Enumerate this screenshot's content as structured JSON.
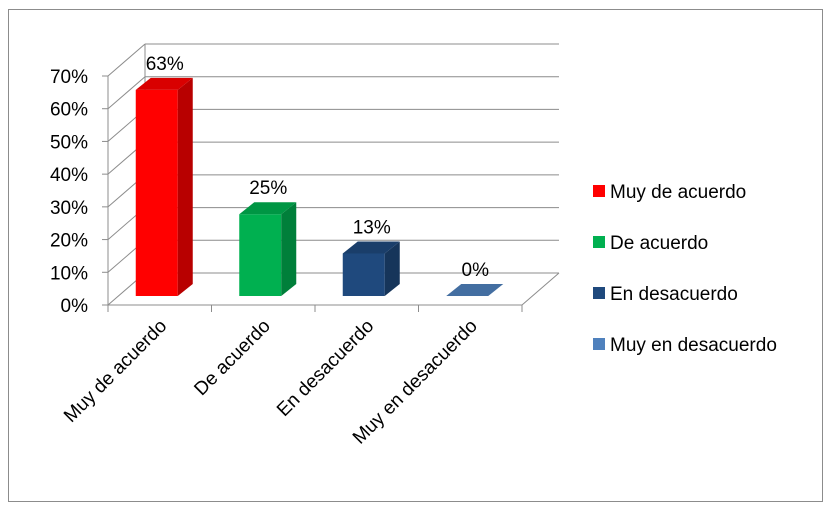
{
  "chart_data": {
    "type": "bar",
    "style": "3d-column",
    "categories": [
      "Muy de acuerdo",
      "De acuerdo",
      "En desacuerdo",
      "Muy en desacuerdo"
    ],
    "values": [
      63,
      25,
      13,
      0
    ],
    "data_labels": [
      "63%",
      "25%",
      "13%",
      "0%"
    ],
    "colors": [
      "#ff0000",
      "#00b050",
      "#1f497d",
      "#4f81bd"
    ],
    "ylim": [
      0,
      70
    ],
    "yticks": [
      0,
      10,
      20,
      30,
      40,
      50,
      60,
      70
    ],
    "ytick_labels": [
      "0%",
      "10%",
      "20%",
      "30%",
      "40%",
      "50%",
      "60%",
      "70%"
    ],
    "grid": true,
    "legend": {
      "position": "right",
      "entries": [
        "Muy de acuerdo",
        "De acuerdo",
        "En desacuerdo",
        "Muy en desacuerdo"
      ]
    },
    "title": "",
    "xlabel": "",
    "ylabel": ""
  }
}
